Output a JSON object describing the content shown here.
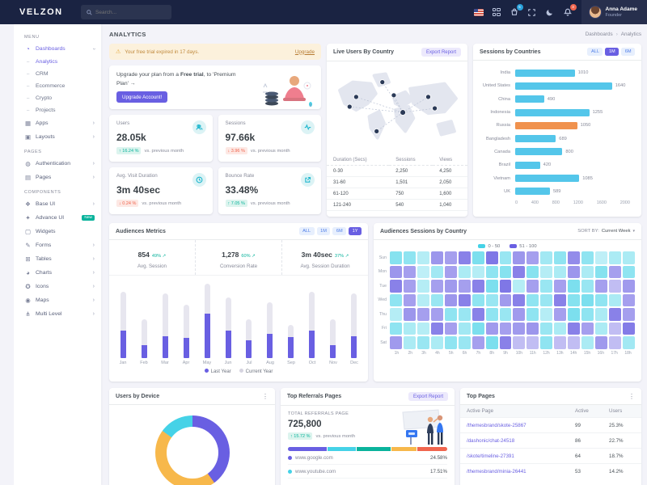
{
  "brand": "VELZON",
  "header": {
    "search_placeholder": "Search...",
    "cart_badge": "5",
    "bell_badge": "3",
    "user": {
      "name": "Anna Adame",
      "role": "Founder"
    }
  },
  "sidebar": {
    "sections": [
      {
        "label": "MENU",
        "items": [
          {
            "id": "dashboards",
            "label": "Dashboards",
            "icon": "dashboard-icon",
            "active": true,
            "chevron": "down"
          },
          {
            "id": "analytics",
            "label": "Analytics",
            "sub": true,
            "active": true
          },
          {
            "id": "crm",
            "label": "CRM",
            "sub": true
          },
          {
            "id": "ecommerce",
            "label": "Ecommerce",
            "sub": true
          },
          {
            "id": "crypto",
            "label": "Crypto",
            "sub": true
          },
          {
            "id": "projects",
            "label": "Projects",
            "sub": true
          },
          {
            "id": "apps",
            "label": "Apps",
            "icon": "apps-icon",
            "chevron": "right"
          },
          {
            "id": "layouts",
            "label": "Layouts",
            "icon": "layouts-icon",
            "chevron": "right"
          }
        ]
      },
      {
        "label": "PAGES",
        "items": [
          {
            "id": "authentication",
            "label": "Authentication",
            "icon": "authentication-icon",
            "chevron": "right"
          },
          {
            "id": "pages",
            "label": "Pages",
            "icon": "pages-icon",
            "chevron": "right"
          }
        ]
      },
      {
        "label": "COMPONENTS",
        "items": [
          {
            "id": "base-ui",
            "label": "Base UI",
            "icon": "base-ui-icon",
            "chevron": "right"
          },
          {
            "id": "advance-ui",
            "label": "Advance UI",
            "icon": "advance-ui-icon",
            "badge": "New"
          },
          {
            "id": "widgets",
            "label": "Widgets",
            "icon": "widgets-icon"
          },
          {
            "id": "forms",
            "label": "Forms",
            "icon": "forms-icon",
            "chevron": "right"
          },
          {
            "id": "tables",
            "label": "Tables",
            "icon": "tables-icon",
            "chevron": "right"
          },
          {
            "id": "charts",
            "label": "Charts",
            "icon": "charts-icon",
            "chevron": "right"
          },
          {
            "id": "icons",
            "label": "Icons",
            "icon": "icons-icon",
            "chevron": "right"
          },
          {
            "id": "maps",
            "label": "Maps",
            "icon": "maps-icon",
            "chevron": "right"
          },
          {
            "id": "multi-level",
            "label": "Multi Level",
            "icon": "multi-level-icon",
            "chevron": "right"
          }
        ]
      }
    ]
  },
  "page": {
    "title": "ANALYTICS",
    "breadcrumb": [
      "Dashboards",
      "Analytics"
    ]
  },
  "trial_alert": {
    "text": "Your free trial expired in 17 days.",
    "link": "Upgrade"
  },
  "upgrade_card": {
    "text1": "Upgrade your plan from a ",
    "text2": "Free trial",
    "text3": ", to 'Premium Plan' →",
    "button": "Upgrade Account!"
  },
  "stat_cards": [
    {
      "label": "Users",
      "value": "28.05k",
      "delta": "↑ 16.24 %",
      "trend": "up",
      "note": "vs. previous month",
      "icon": "users-icon"
    },
    {
      "label": "Sessions",
      "value": "97.66k",
      "delta": "↓ 3.96 %",
      "trend": "down",
      "note": "vs. previous month",
      "icon": "activity-icon"
    },
    {
      "label": "Avg. Visit Duration",
      "value": "3m 40sec",
      "delta": "↓ 0.24 %",
      "trend": "down",
      "note": "vs. previous month",
      "icon": "clock-icon"
    },
    {
      "label": "Bounce Rate",
      "value": "33.48%",
      "delta": "↑ 7.05 %",
      "trend": "up",
      "note": "vs. previous month",
      "icon": "external-link-icon"
    }
  ],
  "live_users": {
    "title": "Live Users By Country",
    "button": "Export Report",
    "table": {
      "headers": [
        "Duration (Secs)",
        "Sessions",
        "Views"
      ],
      "rows": [
        [
          "0-30",
          "2,250",
          "4,250"
        ],
        [
          "31-60",
          "1,501",
          "2,050"
        ],
        [
          "61-120",
          "750",
          "1,600"
        ],
        [
          "121-240",
          "540",
          "1,040"
        ]
      ]
    }
  },
  "audiences_metrics": {
    "title": "Audiences Metrics",
    "stats": [
      {
        "value": "854",
        "delta": "49%",
        "label": "Avg. Session"
      },
      {
        "value": "1,278",
        "delta": "60%",
        "label": "Conversion Rate"
      },
      {
        "value": "3m 40sec",
        "delta": "37%",
        "label": "Avg. Session Duration"
      }
    ]
  },
  "audiences_sessions": {
    "title": "Audiences Sessions by Country",
    "sort_label": "SORT BY:",
    "sort_value": "Current Week"
  },
  "users_by_device": {
    "title": "Users by Device"
  },
  "top_referrals": {
    "title": "Top Referrals Pages",
    "button": "Export Report",
    "total_label": "TOTAL REFERRALS PAGE",
    "total": "725,800",
    "delta": "↑ 15.72 %",
    "note": "vs. previous month",
    "rows": [
      {
        "site": "www.google.com",
        "pct": "24.58%",
        "color": "#695fe2"
      },
      {
        "site": "www.youtube.com",
        "pct": "17.51%",
        "color": "#45d2e7"
      }
    ]
  },
  "top_pages": {
    "title": "Top Pages",
    "headers": [
      "Active Page",
      "Active",
      "Users"
    ],
    "rows": [
      {
        "page": "/themesbrand/skote-25867",
        "active": "99",
        "users": "25.3%"
      },
      {
        "page": "/dashonic/chat-24518",
        "active": "86",
        "users": "22.7%"
      },
      {
        "page": "/skote/timeline-27391",
        "active": "64",
        "users": "18.7%"
      },
      {
        "page": "/themesbrand/minia-26441",
        "active": "53",
        "users": "14.2%"
      }
    ]
  },
  "chart_data": [
    {
      "id": "sessions-by-countries",
      "type": "bar",
      "orientation": "horizontal",
      "title": "Sessions by Countries",
      "categories": [
        "India",
        "United States",
        "China",
        "Indonesia",
        "Russia",
        "Bangladesh",
        "Canada",
        "Brazil",
        "Vietnam",
        "UK"
      ],
      "values": [
        1010,
        1640,
        490,
        1255,
        1050,
        689,
        800,
        420,
        1085,
        589
      ],
      "bar_color": "#54c6ea",
      "highlight_index": 4,
      "highlight_color": "#f0924e",
      "xlim": [
        0,
        2000
      ],
      "xticks": [
        0,
        400,
        800,
        1200,
        1600,
        2000
      ],
      "filters": [
        "ALL",
        "1M",
        "6M"
      ],
      "active_filter": "1M"
    },
    {
      "id": "audiences-metrics-chart",
      "type": "bar",
      "stacked": true,
      "categories": [
        "Jan",
        "Feb",
        "Mar",
        "Apr",
        "May",
        "Jun",
        "Jul",
        "Aug",
        "Sep",
        "Oct",
        "Nov",
        "Dec"
      ],
      "series": [
        {
          "name": "Last Year",
          "color": "#695fe2",
          "values": [
            25,
            12,
            20,
            18,
            40,
            25,
            16,
            22,
            19,
            25,
            12,
            20
          ]
        },
        {
          "name": "Current Year",
          "color": "#e7e6ef",
          "values": [
            35,
            23,
            38,
            30,
            27,
            30,
            19,
            28,
            11,
            35,
            23,
            38
          ]
        }
      ],
      "ylim": [
        0,
        70
      ],
      "filters": [
        "ALL",
        "1M",
        "6M",
        "1Y"
      ],
      "active_filter": "1Y"
    },
    {
      "id": "audiences-sessions-heatmap",
      "type": "heatmap",
      "rows": [
        "Sun",
        "Mon",
        "Tue",
        "Wed",
        "Thu",
        "Fri",
        "Sat"
      ],
      "columns": [
        "1h",
        "2h",
        "3h",
        "4h",
        "5h",
        "6h",
        "7h",
        "8h",
        "9h",
        "10h",
        "11h",
        "12h",
        "13h",
        "14h",
        "15h",
        "16h",
        "17h",
        "18h"
      ],
      "legend": [
        {
          "label": "0 - 50",
          "color": "#45d2e7"
        },
        {
          "label": "51 - 100",
          "color": "#695fe2"
        }
      ],
      "values": [
        [
          45,
          40,
          20,
          75,
          70,
          85,
          50,
          90,
          35,
          75,
          70,
          30,
          40,
          80,
          40,
          15,
          25,
          25
        ],
        [
          75,
          70,
          15,
          30,
          70,
          25,
          20,
          40,
          45,
          85,
          45,
          20,
          25,
          75,
          25,
          45,
          70,
          40
        ],
        [
          85,
          70,
          20,
          70,
          72,
          70,
          85,
          50,
          90,
          20,
          70,
          35,
          70,
          50,
          35,
          70,
          55,
          72
        ],
        [
          40,
          70,
          20,
          35,
          75,
          85,
          40,
          35,
          72,
          85,
          40,
          35,
          85,
          45,
          50,
          40,
          25,
          70
        ],
        [
          20,
          75,
          70,
          70,
          40,
          35,
          85,
          40,
          35,
          72,
          40,
          20,
          70,
          50,
          40,
          25,
          85,
          70
        ],
        [
          40,
          25,
          20,
          85,
          70,
          30,
          50,
          72,
          70,
          72,
          75,
          35,
          25,
          85,
          70,
          25,
          55,
          88
        ],
        [
          72,
          25,
          35,
          25,
          40,
          35,
          70,
          50,
          85,
          55,
          55,
          40,
          55,
          55,
          25,
          72,
          55,
          30
        ]
      ]
    },
    {
      "id": "users-by-device-donut",
      "type": "pie",
      "segments": [
        {
          "percent": 40,
          "color": "#695fe2"
        },
        {
          "percent": 45,
          "color": "#f7b84b"
        },
        {
          "percent": 15,
          "color": "#45d2e7"
        }
      ]
    },
    {
      "id": "referrals-progress",
      "type": "bar",
      "stacked": true,
      "segments": [
        {
          "percent": 25,
          "color": "#695fe2"
        },
        {
          "percent": 18,
          "color": "#45d2e7"
        },
        {
          "percent": 22,
          "color": "#0ab39c"
        },
        {
          "percent": 16,
          "color": "#f7b84b"
        },
        {
          "percent": 19,
          "color": "#f0654e"
        }
      ]
    }
  ]
}
